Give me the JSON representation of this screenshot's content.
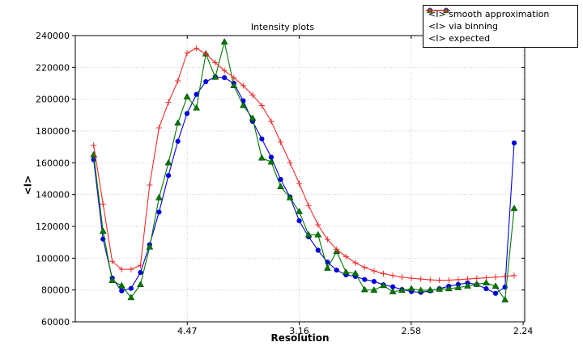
{
  "chart_data": {
    "type": "line",
    "title": "Intensity plots",
    "xlabel": "Resolution",
    "ylabel": "<I>",
    "grid": true,
    "legend_position": "upper right",
    "xlim": [
      0,
      0.2007
    ],
    "ylim": [
      60000,
      240000
    ],
    "x_scale_note": "x is linear in 1/d^2; tick labels give resolution d in Angstrom",
    "x_ticks": [
      {
        "x": 0.05,
        "label": "4.47"
      },
      {
        "x": 0.1,
        "label": "3.16"
      },
      {
        "x": 0.15,
        "label": "2.58"
      },
      {
        "x": 0.2,
        "label": "2.24"
      }
    ],
    "y_ticks": [
      {
        "y": 60000,
        "label": "60000"
      },
      {
        "y": 80000,
        "label": "80000"
      },
      {
        "y": 100000,
        "label": "100000"
      },
      {
        "y": 120000,
        "label": "120000"
      },
      {
        "y": 140000,
        "label": "140000"
      },
      {
        "y": 160000,
        "label": "160000"
      },
      {
        "y": 180000,
        "label": "180000"
      },
      {
        "y": 200000,
        "label": "200000"
      },
      {
        "y": 220000,
        "label": "220000"
      },
      {
        "y": 240000,
        "label": "240000"
      }
    ],
    "x": [
      0.0082,
      0.0124,
      0.0165,
      0.0207,
      0.0249,
      0.0291,
      0.0332,
      0.0374,
      0.0416,
      0.0458,
      0.0499,
      0.0541,
      0.0583,
      0.0625,
      0.0666,
      0.0708,
      0.075,
      0.0792,
      0.0833,
      0.0875,
      0.0917,
      0.0959,
      0.1,
      0.1042,
      0.1084,
      0.1126,
      0.1167,
      0.1209,
      0.1251,
      0.1292,
      0.1334,
      0.1376,
      0.1418,
      0.1459,
      0.1501,
      0.1543,
      0.1585,
      0.1626,
      0.1668,
      0.171,
      0.1752,
      0.1793,
      0.1835,
      0.1877,
      0.1919,
      0.196
    ],
    "series": [
      {
        "name": "<I> smooth approximation",
        "color": "#0000e0",
        "marker": "circle",
        "values": [
          162000,
          112000,
          87500,
          79500,
          81000,
          91000,
          108500,
          129000,
          152000,
          173500,
          191000,
          203000,
          211000,
          214000,
          213500,
          210000,
          199000,
          186000,
          175000,
          163500,
          149500,
          138500,
          123500,
          113500,
          105000,
          97500,
          92500,
          89500,
          88500,
          86600,
          85400,
          83300,
          82000,
          80300,
          79000,
          78500,
          79500,
          80800,
          82400,
          83500,
          84500,
          83400,
          80800,
          77900,
          81800,
          172500
        ]
      },
      {
        "name": "<I> via binning",
        "color": "#007a00",
        "marker": "triangle-up",
        "values": [
          165000,
          117000,
          86000,
          82700,
          75200,
          83400,
          107000,
          138000,
          160000,
          185000,
          201500,
          194500,
          228500,
          213800,
          236000,
          208500,
          196000,
          188000,
          163000,
          160500,
          145000,
          138000,
          129300,
          114700,
          114700,
          93700,
          104200,
          91200,
          90400,
          80200,
          79900,
          82800,
          78900,
          79800,
          80800,
          79800,
          80000,
          80500,
          80800,
          81500,
          82500,
          83600,
          84500,
          82400,
          73800,
          131300
        ]
      },
      {
        "name": "<I> expected",
        "color": "#ee2c2c",
        "marker": "plus",
        "values": [
          171000,
          134000,
          98000,
          93000,
          93000,
          95500,
          146000,
          182000,
          198000,
          211500,
          229000,
          232000,
          228500,
          223000,
          218000,
          213500,
          208500,
          202500,
          196000,
          186000,
          173000,
          160000,
          147000,
          133000,
          121000,
          111800,
          105600,
          101000,
          97100,
          94200,
          92000,
          90300,
          89100,
          88100,
          87400,
          86900,
          86400,
          86100,
          86200,
          86500,
          86900,
          87300,
          87700,
          88100,
          88600,
          89100
        ]
      }
    ]
  }
}
